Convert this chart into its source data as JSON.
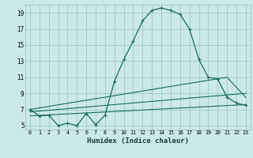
{
  "xlabel": "Humidex (Indice chaleur)",
  "bg_color": "#cce9e9",
  "grid_color": "#99cccc",
  "line_color": "#1a6b5a",
  "xlim": [
    -0.5,
    23.5
  ],
  "ylim": [
    4.5,
    20.0
  ],
  "xticks": [
    0,
    1,
    2,
    3,
    4,
    5,
    6,
    7,
    8,
    9,
    10,
    11,
    12,
    13,
    14,
    15,
    16,
    17,
    18,
    19,
    20,
    21,
    22,
    23
  ],
  "yticks": [
    5,
    7,
    9,
    11,
    13,
    15,
    17,
    19
  ],
  "series1_x": [
    0,
    1,
    2,
    3,
    4,
    5,
    6,
    7,
    8,
    9,
    10,
    11,
    12,
    13,
    14,
    15,
    16,
    17,
    18,
    19,
    20,
    21,
    22,
    23
  ],
  "series1_y": [
    7.0,
    6.2,
    6.3,
    5.0,
    5.3,
    5.0,
    6.5,
    5.1,
    6.3,
    10.5,
    13.2,
    15.5,
    18.0,
    19.3,
    19.6,
    19.3,
    18.8,
    17.0,
    13.2,
    11.0,
    10.8,
    8.5,
    7.8,
    7.5
  ],
  "series2_x": [
    0,
    23
  ],
  "series2_y": [
    6.2,
    7.6
  ],
  "series3_x": [
    0,
    23
  ],
  "series3_y": [
    6.7,
    9.0
  ],
  "series4_x": [
    0,
    21,
    23
  ],
  "series4_y": [
    7.0,
    11.0,
    8.5
  ]
}
